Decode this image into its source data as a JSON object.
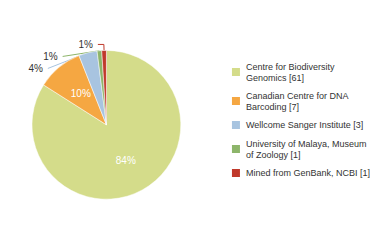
{
  "chart_data": {
    "type": "pie",
    "categories": [
      "Centre for Biodiversity\nGenomics [61]",
      "Canadian Centre for DNA\nBarcoding [7]",
      "Wellcome Sanger Institute [3]",
      "University of Malaya, Museum\nof Zoology [1]",
      "Mined from GenBank, NCBI [1]"
    ],
    "values": [
      84,
      10,
      4,
      1,
      1
    ],
    "value_labels": [
      "84%",
      "10%",
      "4%",
      "1%",
      "1%"
    ],
    "colors": [
      "#d4dc8a",
      "#f5a742",
      "#a8c4e0",
      "#8db56a",
      "#c0392b"
    ],
    "data_labels": true,
    "legend": "right"
  }
}
